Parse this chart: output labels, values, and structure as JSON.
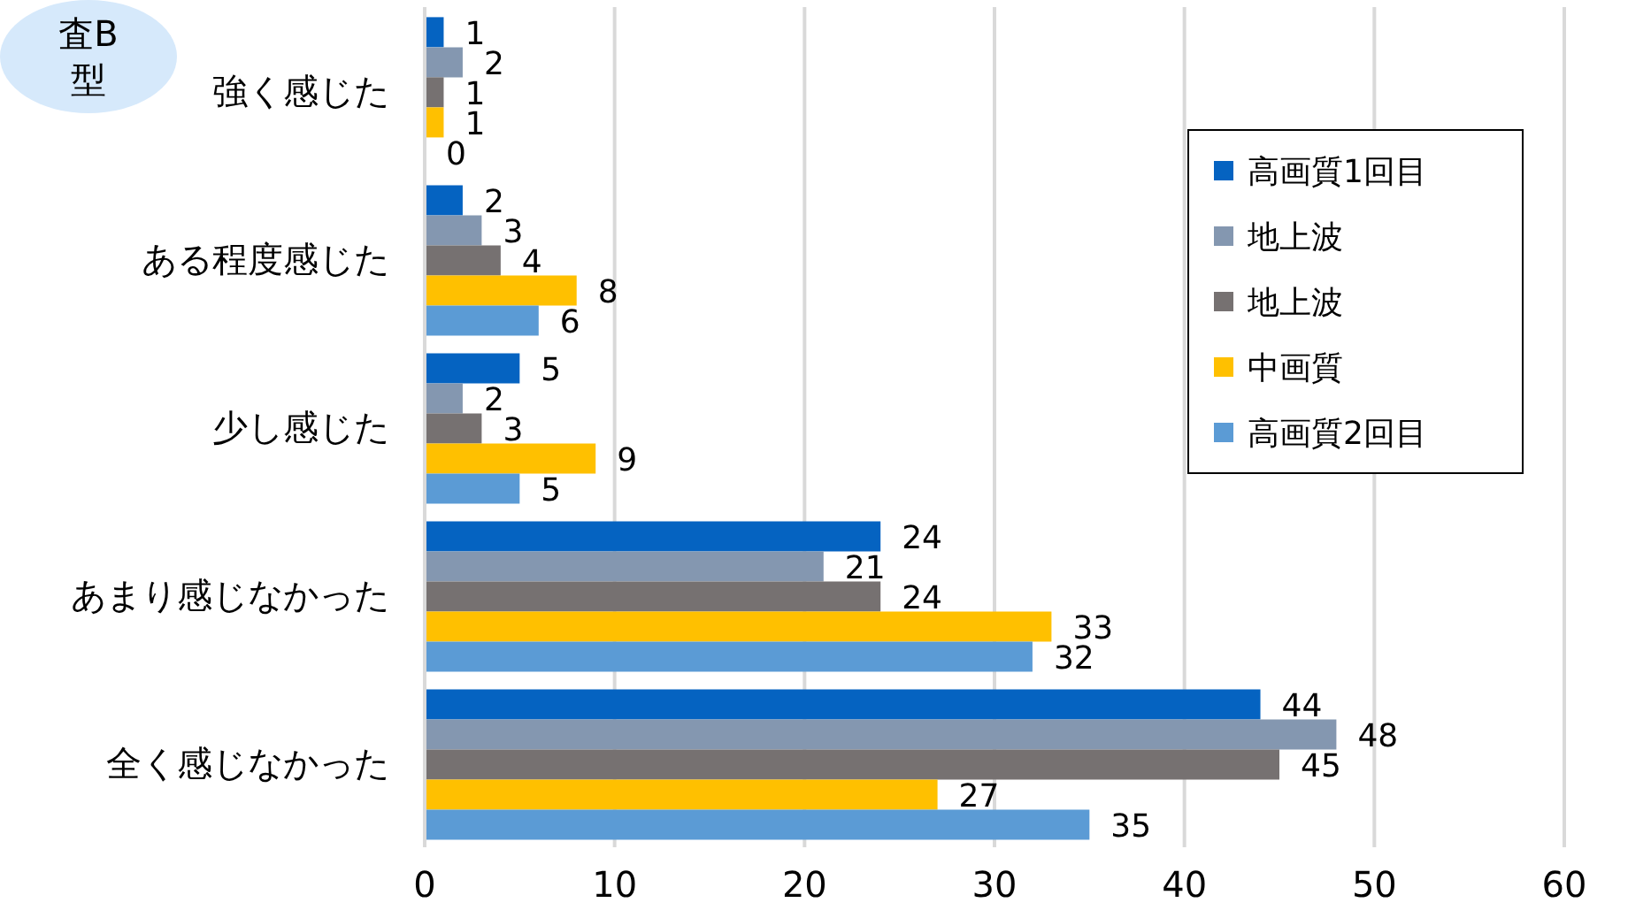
{
  "chart_data": {
    "type": "bar",
    "orientation": "horizontal",
    "categories": [
      "強く感じた",
      "ある程度感じた",
      "少し感じた",
      "あまり感じなかった",
      "全く感じなかった"
    ],
    "series": [
      {
        "name": "高画質1回目",
        "color": "#0563c1",
        "values": [
          1,
          2,
          5,
          24,
          44
        ]
      },
      {
        "name": "地上波",
        "color": "#8497b0",
        "values": [
          2,
          3,
          2,
          21,
          48
        ]
      },
      {
        "name": "地上波",
        "color": "#767171",
        "values": [
          1,
          4,
          3,
          24,
          45
        ]
      },
      {
        "name": "中画質",
        "color": "#ffc000",
        "values": [
          1,
          8,
          9,
          33,
          27
        ]
      },
      {
        "name": "高画質2回目",
        "color": "#5b9bd5",
        "values": [
          0,
          6,
          5,
          32,
          35
        ]
      }
    ],
    "xlim": [
      0,
      60
    ],
    "xticks": [
      0,
      10,
      20,
      30,
      40,
      50,
      60
    ],
    "grid": "x",
    "legend": "top right",
    "data_labels": true,
    "annotations": [
      "査B",
      "型"
    ]
  }
}
